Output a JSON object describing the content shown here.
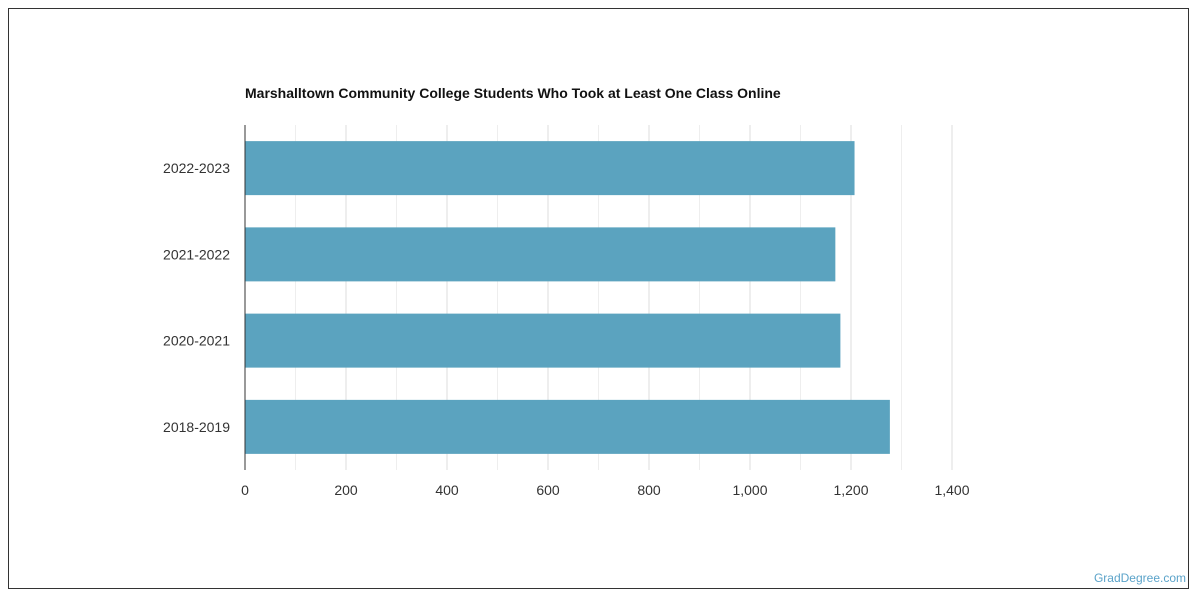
{
  "chart_data": {
    "type": "bar",
    "orientation": "horizontal",
    "title": "Marshalltown Community College Students Who Took at Least One Class Online",
    "categories": [
      "2022-2023",
      "2021-2022",
      "2020-2021",
      "2018-2019"
    ],
    "values": [
      1207,
      1169,
      1179,
      1277
    ],
    "xlim": [
      0,
      1400
    ],
    "xticks": [
      0,
      200,
      400,
      600,
      800,
      1000,
      1200,
      1400
    ],
    "xtick_labels": [
      "0",
      "200",
      "400",
      "600",
      "800",
      "1,000",
      "1,200",
      "1,400"
    ],
    "grid": true,
    "bar_color": "#5ba3bf",
    "xlabel": "",
    "ylabel": ""
  },
  "watermark": "GradDegree.com"
}
